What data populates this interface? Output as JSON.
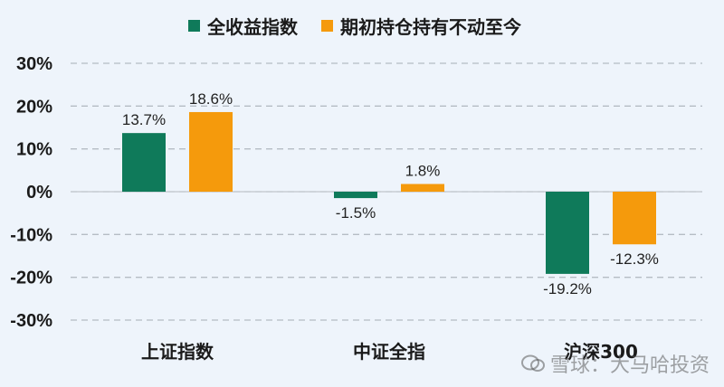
{
  "colors": {
    "series1": "#0f7a5a",
    "series2": "#f59a0c",
    "grid": "#b5bcc4"
  },
  "legend": {
    "series1_label": "全收益指数",
    "series2_label": "期初持仓持有不动至今"
  },
  "watermark": {
    "text": "雪球：大马哈投资"
  },
  "chart_data": {
    "type": "bar",
    "categories": [
      "上证指数",
      "中证全指",
      "沪深300"
    ],
    "series": [
      {
        "name": "全收益指数",
        "values": [
          13.7,
          -1.5,
          -19.2
        ]
      },
      {
        "name": "期初持仓持有不动至今",
        "values": [
          18.6,
          1.8,
          -12.3
        ]
      }
    ],
    "data_labels": [
      [
        "13.7%",
        "-1.5%",
        "-19.2%"
      ],
      [
        "18.6%",
        "1.8%",
        "-12.3%"
      ]
    ],
    "y_ticks": [
      "30%",
      "20%",
      "10%",
      "0%",
      "-10%",
      "-20%",
      "-30%"
    ],
    "ylim": [
      -30,
      30
    ],
    "grid": true,
    "legend_position": "top"
  }
}
